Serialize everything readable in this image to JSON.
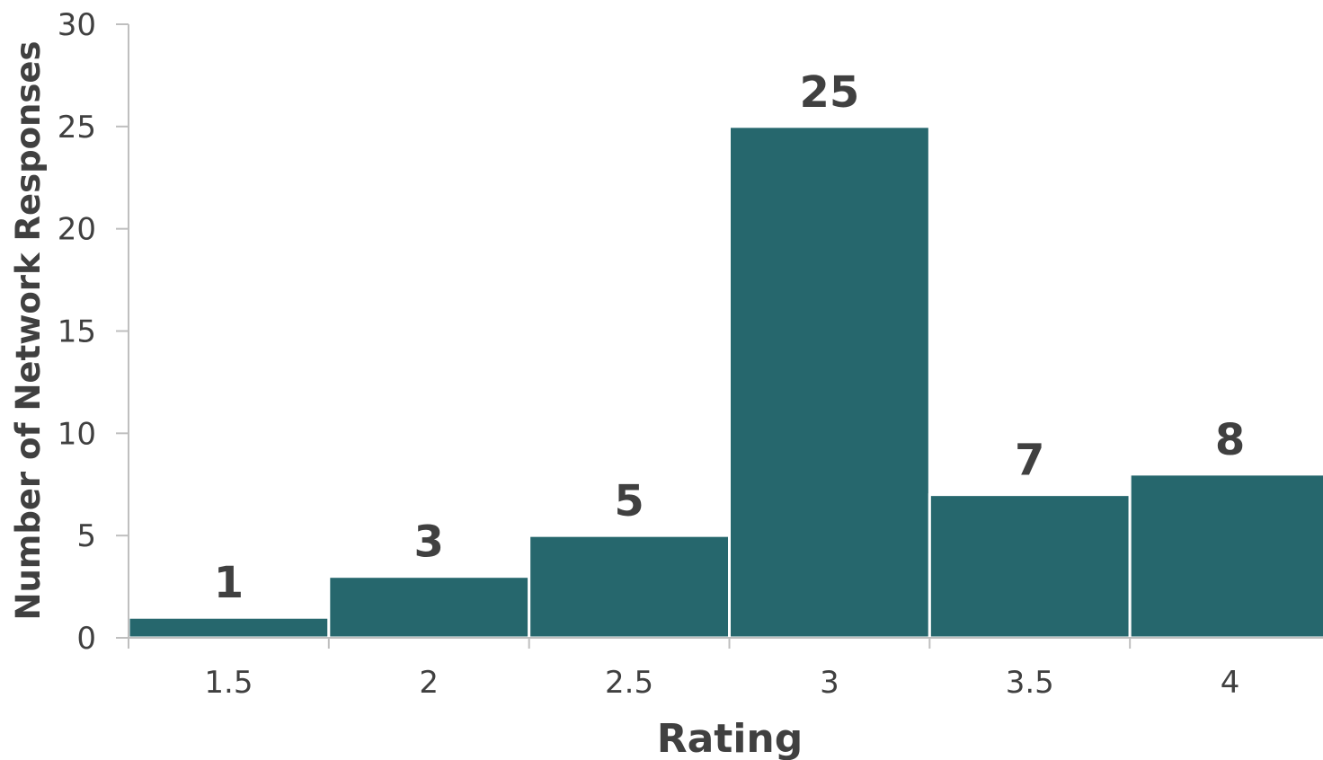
{
  "colors": {
    "bar": "#26676d",
    "text": "#404040",
    "axis": "#bfbfbf"
  },
  "chart_data": {
    "type": "bar",
    "categories": [
      "1.5",
      "2",
      "2.5",
      "3",
      "3.5",
      "4"
    ],
    "values": [
      1,
      3,
      5,
      25,
      7,
      8
    ],
    "data_labels": [
      "1",
      "3",
      "5",
      "25",
      "7",
      "8"
    ],
    "title": "",
    "xlabel": "Rating",
    "ylabel": "Number of Network Responses",
    "ylim": [
      0,
      30
    ],
    "yticks": [
      "0",
      "5",
      "10",
      "15",
      "20",
      "25",
      "30"
    ],
    "grid": false,
    "legend": "none"
  }
}
